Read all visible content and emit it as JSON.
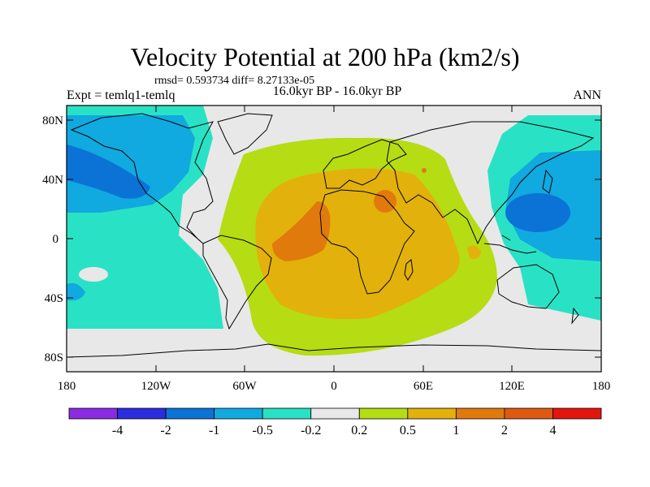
{
  "plot": {
    "title": "Velocity Potential at 200 hPa (km2/s)",
    "stats": "rmsd= 0.593734 diff= 8.27133e-05",
    "experiment": "Expt = temlq1-temlq",
    "period": "16.0kyr BP - 16.0kyr BP",
    "season": "ANN"
  },
  "axes": {
    "x_ticks": [
      "180",
      "120W",
      "60W",
      "0",
      "60E",
      "120E",
      "180"
    ],
    "y_ticks": [
      "80N",
      "40N",
      "0",
      "40S",
      "80S"
    ],
    "lon_range": [
      -180,
      180
    ],
    "lat_range": [
      -90,
      90
    ]
  },
  "colorbar": {
    "labels": [
      "-4",
      "-2",
      "-1",
      "-0.5",
      "-0.2",
      "0.2",
      "0.5",
      "1",
      "2",
      "4"
    ],
    "colors": [
      "#8a2be2",
      "#2b2ddf",
      "#0b73d6",
      "#10a9e0",
      "#29e2c5",
      "#e8e8e8",
      "#b6dc14",
      "#e3b10c",
      "#e07a0d",
      "#dd5a10",
      "#e3160e"
    ]
  }
}
